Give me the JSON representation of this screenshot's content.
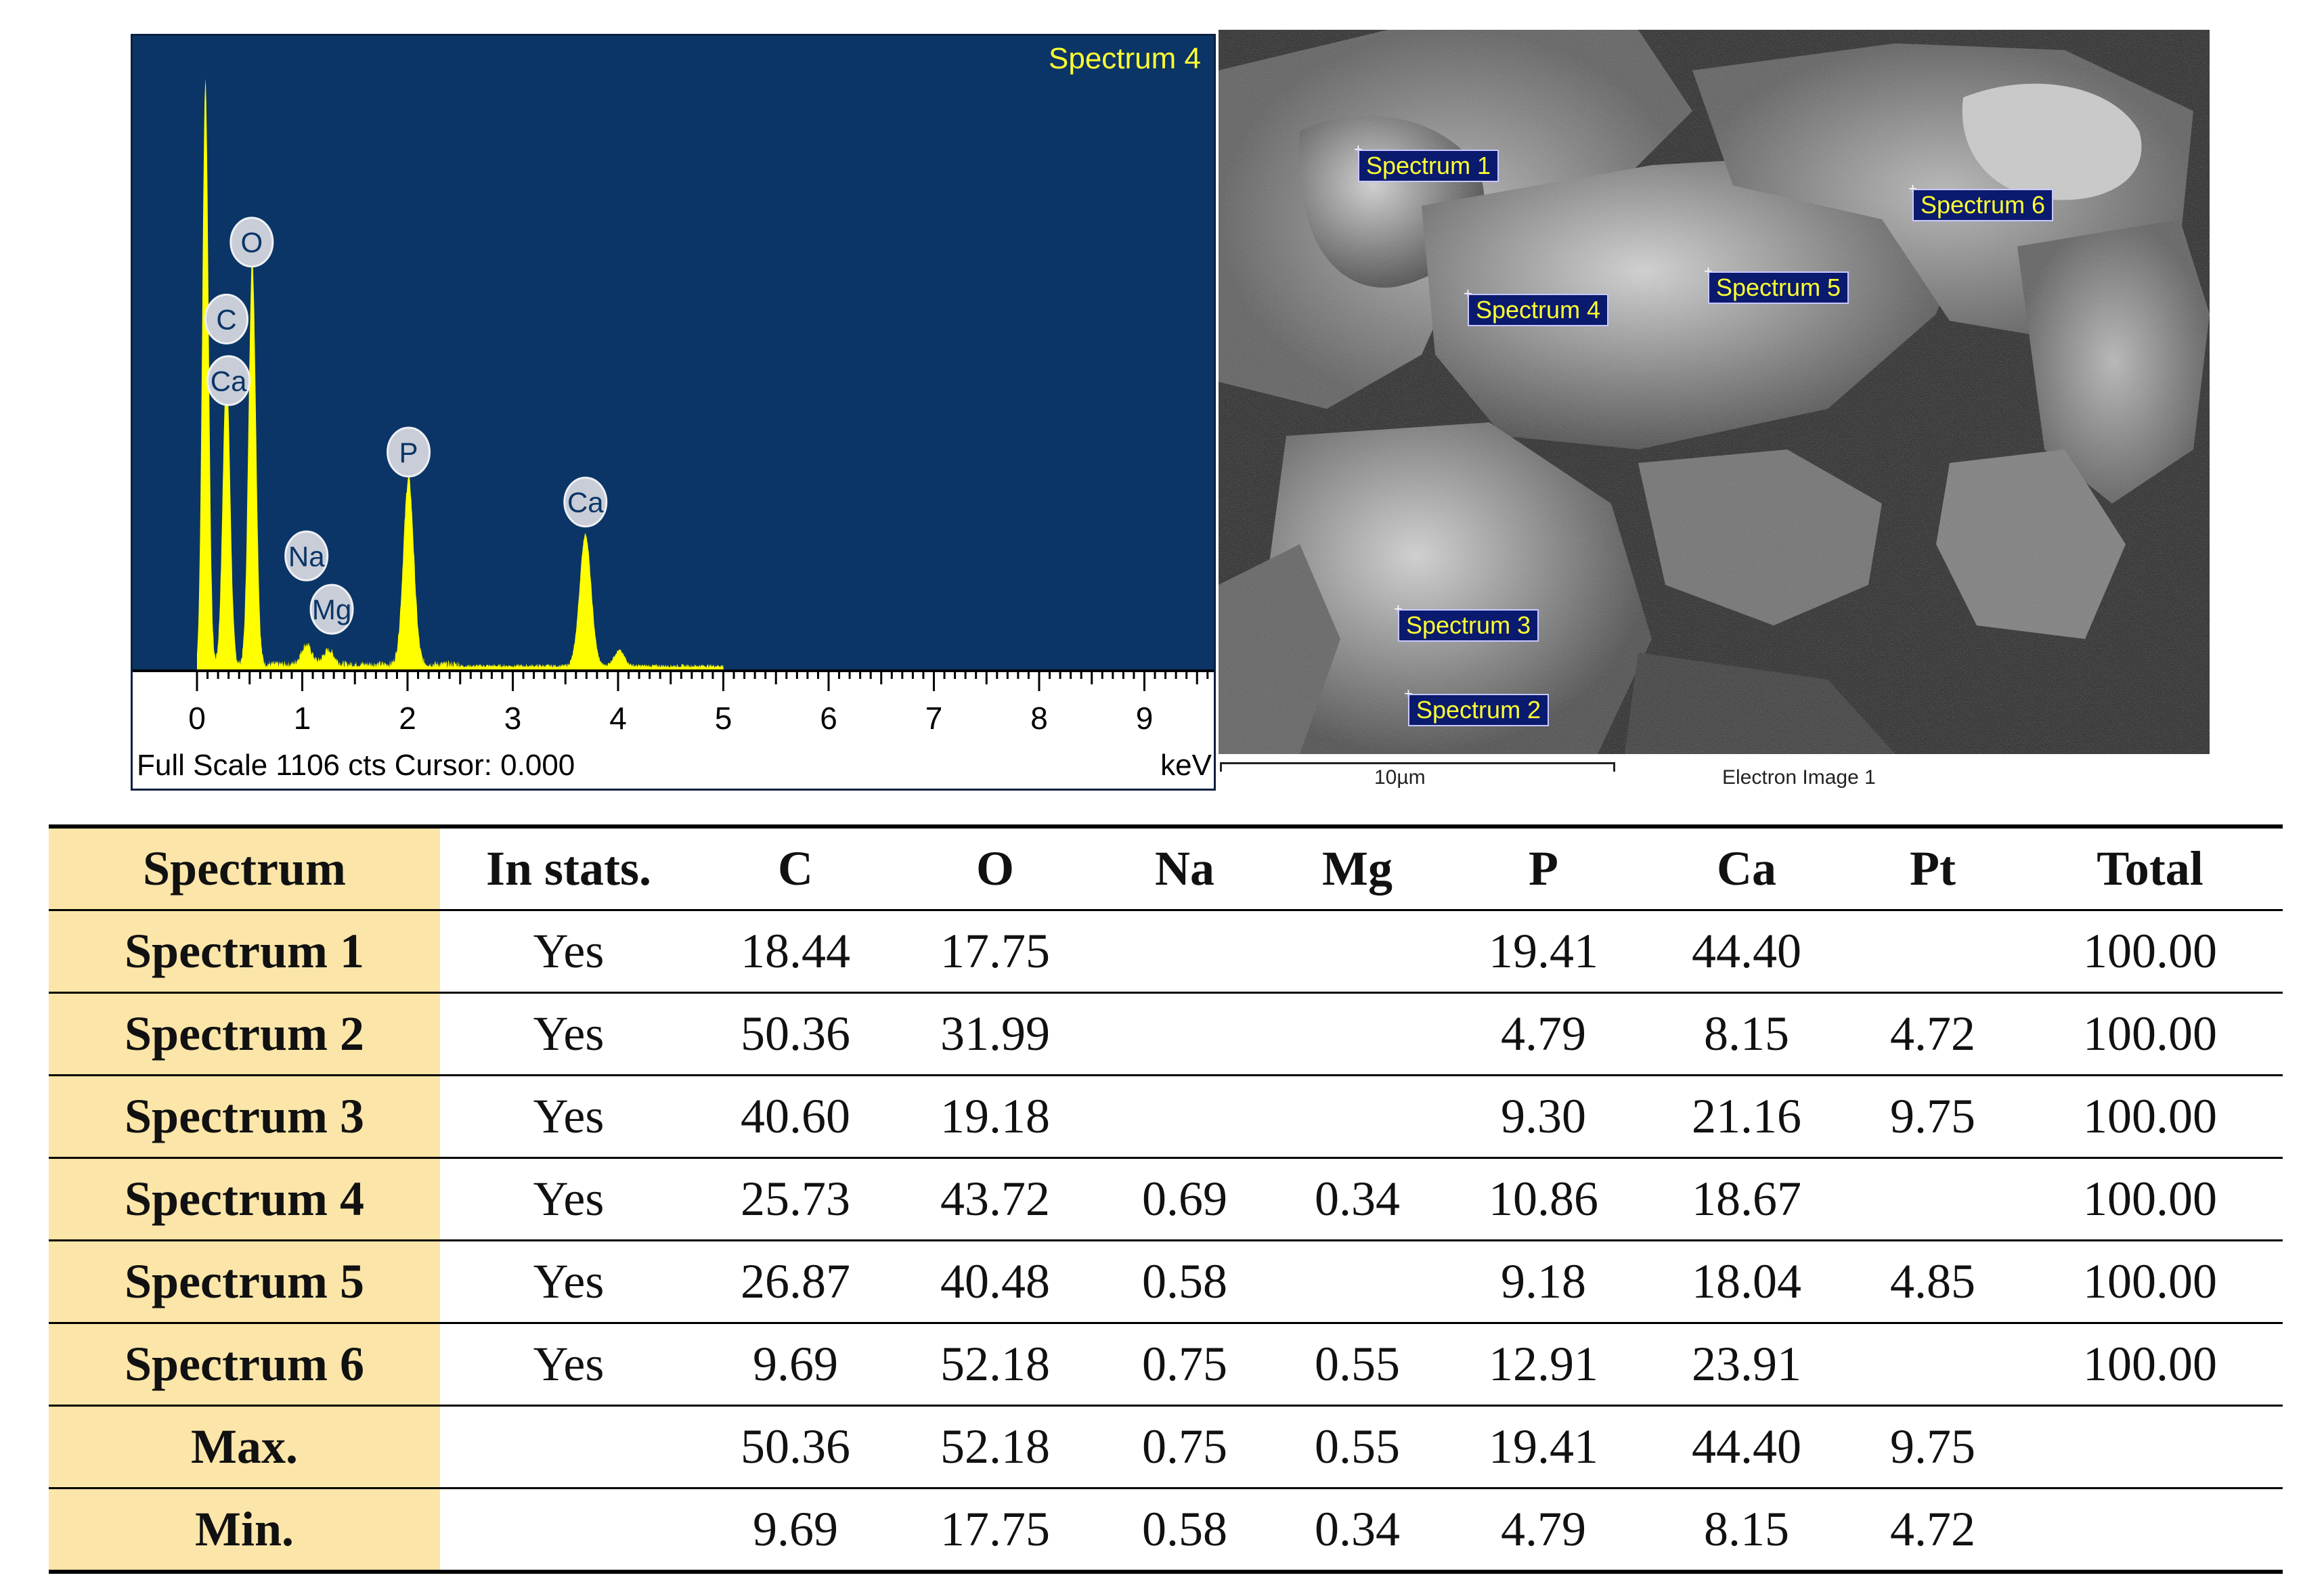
{
  "spectrum": {
    "title": "Spectrum 4",
    "status": "Full Scale 1106 cts Cursor: 0.000",
    "unit": "keV",
    "colors": {
      "background": "#0b3566",
      "trace": "#ffff00",
      "label_bg": "#c8cdd8"
    }
  },
  "chart_data": {
    "type": "line",
    "title": "Spectrum 4",
    "xlabel": "keV",
    "ylabel": "",
    "xlim": [
      0,
      9.6
    ],
    "ylim": [
      0,
      1106
    ],
    "x_ticks": [
      "0",
      "1",
      "2",
      "3",
      "4",
      "5",
      "6",
      "7",
      "8",
      "9"
    ],
    "grid": false,
    "series": [
      {
        "peaks": [
          {
            "x": 0.08,
            "y": 1060,
            "width": 0.03
          },
          {
            "x": 0.28,
            "y": 540,
            "width": 0.035
          },
          {
            "x": 0.525,
            "y": 740,
            "width": 0.035
          },
          {
            "x": 1.04,
            "y": 36,
            "width": 0.05
          },
          {
            "x": 1.25,
            "y": 26,
            "width": 0.05
          },
          {
            "x": 2.01,
            "y": 340,
            "width": 0.05
          },
          {
            "x": 3.69,
            "y": 240,
            "width": 0.055
          },
          {
            "x": 4.01,
            "y": 28,
            "width": 0.05
          }
        ]
      }
    ],
    "annotations": [
      {
        "text": "O",
        "x": 0.52,
        "y": 780
      },
      {
        "text": "C",
        "x": 0.28,
        "y": 640
      },
      {
        "text": "Ca",
        "x": 0.3,
        "y": 528
      },
      {
        "text": "P",
        "x": 2.01,
        "y": 398
      },
      {
        "text": "Ca",
        "x": 3.69,
        "y": 307
      },
      {
        "text": "Na",
        "x": 1.04,
        "y": 209
      },
      {
        "text": "Mg",
        "x": 1.28,
        "y": 112
      }
    ]
  },
  "sem": {
    "labels": [
      "Spectrum 1",
      "Spectrum 6",
      "Spectrum 5",
      "Spectrum 4",
      "Spectrum 3",
      "Spectrum 2"
    ],
    "marker": "+",
    "scale_bar": "10µm",
    "caption": "Electron Image 1"
  },
  "table": {
    "headers": [
      "Spectrum",
      "In stats.",
      "C",
      "O",
      "Na",
      "Mg",
      "P",
      "Ca",
      "Pt",
      "Total"
    ],
    "rows": [
      [
        "Spectrum 1",
        "Yes",
        "18.44",
        "17.75",
        "",
        "",
        "19.41",
        "44.40",
        "",
        "100.00"
      ],
      [
        "Spectrum 2",
        "Yes",
        "50.36",
        "31.99",
        "",
        "",
        "4.79",
        "8.15",
        "4.72",
        "100.00"
      ],
      [
        "Spectrum 3",
        "Yes",
        "40.60",
        "19.18",
        "",
        "",
        "9.30",
        "21.16",
        "9.75",
        "100.00"
      ],
      [
        "Spectrum 4",
        "Yes",
        "25.73",
        "43.72",
        "0.69",
        "0.34",
        "10.86",
        "18.67",
        "",
        "100.00"
      ],
      [
        "Spectrum 5",
        "Yes",
        "26.87",
        "40.48",
        "0.58",
        "",
        "9.18",
        "18.04",
        "4.85",
        "100.00"
      ],
      [
        "Spectrum 6",
        "Yes",
        "9.69",
        "52.18",
        "0.75",
        "0.55",
        "12.91",
        "23.91",
        "",
        "100.00"
      ],
      [
        "Max.",
        "",
        "50.36",
        "52.18",
        "0.75",
        "0.55",
        "19.41",
        "44.40",
        "9.75",
        ""
      ],
      [
        "Min.",
        "",
        "9.69",
        "17.75",
        "0.58",
        "0.34",
        "4.79",
        "8.15",
        "4.72",
        ""
      ]
    ],
    "colors": {
      "first_col_bg": "#fbe5a8"
    }
  }
}
